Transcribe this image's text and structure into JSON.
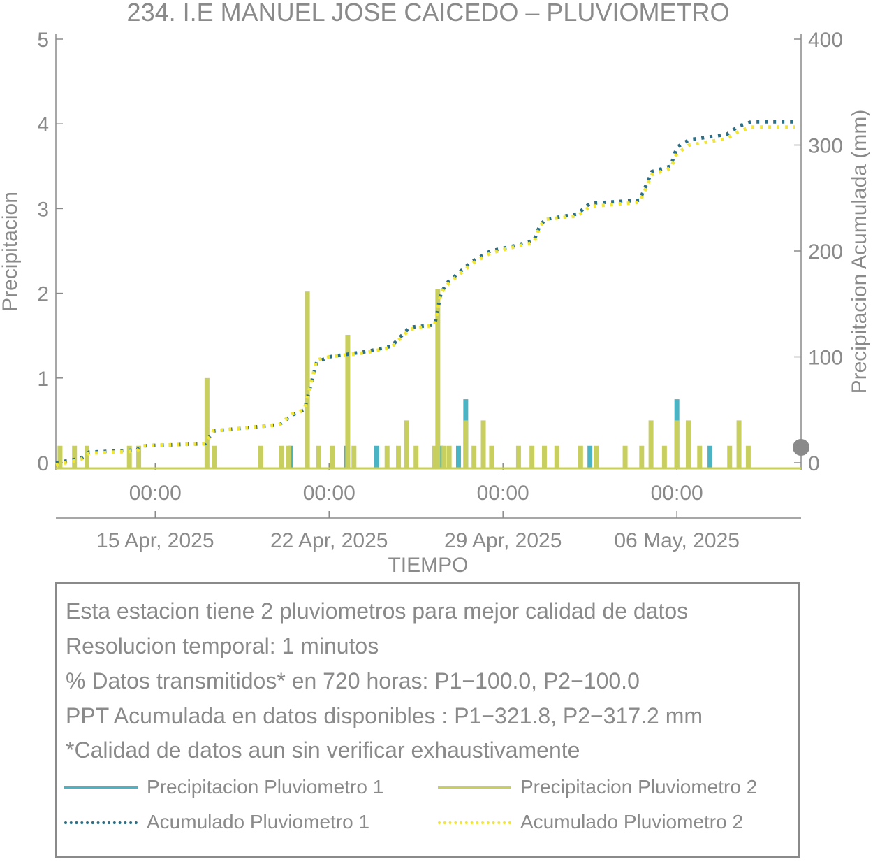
{
  "colors": {
    "p1": "#4bb4c4",
    "p2": "#c9cf5e",
    "acc1": "#2a6f86",
    "acc2": "#f2e634",
    "text": "#8a8a8a"
  },
  "chart_data": {
    "type": "bar+line",
    "title": "234. I.E MANUEL JOSE CAICEDO – PLUVIOMETRO",
    "xlabel": "TIEMPO",
    "ylabel_left": "Precipitacion",
    "ylabel_right": "Precipitacion Acumulada (mm)",
    "y_left_range": [
      0,
      5
    ],
    "y_left_ticks": [
      "0",
      "1",
      "2",
      "3",
      "4",
      "5"
    ],
    "y_right_range": [
      0,
      400
    ],
    "y_right_ticks": [
      "0",
      "100",
      "200",
      "300",
      "400"
    ],
    "x_range": [
      "2025-04-11T00:00",
      "2025-05-11T00:00"
    ],
    "x_time_ticks": [
      {
        "t": "2025-04-15T00:00",
        "label": "00:00"
      },
      {
        "t": "2025-04-22T00:00",
        "label": "00:00"
      },
      {
        "t": "2025-04-29T00:00",
        "label": "00:00"
      },
      {
        "t": "2025-05-06T00:00",
        "label": "00:00"
      }
    ],
    "x_date_ticks": [
      {
        "t": "2025-04-15T00:00",
        "label": "15 Apr, 2025"
      },
      {
        "t": "2025-04-22T00:00",
        "label": "22 Apr, 2025"
      },
      {
        "t": "2025-04-29T00:00",
        "label": "29 Apr, 2025"
      },
      {
        "t": "2025-05-06T00:00",
        "label": "06 May, 2025"
      }
    ],
    "grid": false,
    "legend_placement": "bottom",
    "series": [
      {
        "name": "Precipitacion Pluviometro 1",
        "kind": "bar",
        "axis": "left",
        "points": [
          [
            "2025-04-20T11:00",
            0.2
          ],
          [
            "2025-04-22T17:00",
            0.2
          ],
          [
            "2025-04-23T22:00",
            0.2
          ],
          [
            "2025-04-26T12:00",
            0.2
          ],
          [
            "2025-04-27T05:00",
            0.2
          ],
          [
            "2025-04-27T12:00",
            0.75
          ],
          [
            "2025-05-02T12:00",
            0.2
          ],
          [
            "2025-05-06T00:00",
            0.75
          ],
          [
            "2025-05-07T08:00",
            0.2
          ]
        ]
      },
      {
        "name": "Precipitacion Pluviometro 2",
        "kind": "bar",
        "axis": "left",
        "points": [
          [
            "2025-04-11T04:00",
            0.2
          ],
          [
            "2025-04-11T18:00",
            0.2
          ],
          [
            "2025-04-12T06:00",
            0.2
          ],
          [
            "2025-04-13T23:00",
            0.2
          ],
          [
            "2025-04-14T08:00",
            0.2
          ],
          [
            "2025-04-17T02:00",
            1.0
          ],
          [
            "2025-04-17T09:00",
            0.2
          ],
          [
            "2025-04-19T06:00",
            0.2
          ],
          [
            "2025-04-20T02:00",
            0.2
          ],
          [
            "2025-04-20T09:00",
            0.2
          ],
          [
            "2025-04-21T03:00",
            2.02
          ],
          [
            "2025-04-21T14:00",
            0.2
          ],
          [
            "2025-04-22T03:00",
            0.2
          ],
          [
            "2025-04-22T18:00",
            1.51
          ],
          [
            "2025-04-23T00:00",
            0.2
          ],
          [
            "2025-04-24T08:00",
            0.2
          ],
          [
            "2025-04-24T19:00",
            0.2
          ],
          [
            "2025-04-25T03:00",
            0.5
          ],
          [
            "2025-04-25T12:00",
            0.2
          ],
          [
            "2025-04-26T06:00",
            0.2
          ],
          [
            "2025-04-26T09:00",
            2.05
          ],
          [
            "2025-04-26T15:00",
            0.2
          ],
          [
            "2025-04-26T20:00",
            0.2
          ],
          [
            "2025-04-27T12:00",
            0.5
          ],
          [
            "2025-04-27T20:00",
            0.2
          ],
          [
            "2025-04-28T05:00",
            0.5
          ],
          [
            "2025-04-28T13:00",
            0.2
          ],
          [
            "2025-04-29T15:00",
            0.2
          ],
          [
            "2025-04-30T04:00",
            0.2
          ],
          [
            "2025-04-30T16:00",
            0.2
          ],
          [
            "2025-05-01T04:00",
            0.2
          ],
          [
            "2025-05-02T03:00",
            0.2
          ],
          [
            "2025-05-02T18:00",
            0.2
          ],
          [
            "2025-05-03T22:00",
            0.2
          ],
          [
            "2025-05-04T14:00",
            0.2
          ],
          [
            "2025-05-04T23:00",
            0.5
          ],
          [
            "2025-05-05T12:00",
            0.2
          ],
          [
            "2025-05-06T00:00",
            0.5
          ],
          [
            "2025-05-06T11:00",
            0.5
          ],
          [
            "2025-05-06T22:00",
            0.2
          ],
          [
            "2025-05-08T03:00",
            0.2
          ],
          [
            "2025-05-08T12:00",
            0.5
          ],
          [
            "2025-05-08T21:00",
            0.2
          ]
        ]
      },
      {
        "name": "Acumulado Pluviometro 1",
        "kind": "line",
        "style": "dotted",
        "axis": "right",
        "points": [
          [
            "2025-04-11T00:00",
            0
          ],
          [
            "2025-04-12T00:00",
            4
          ],
          [
            "2025-04-12T08:00",
            10
          ],
          [
            "2025-04-14T06:00",
            12
          ],
          [
            "2025-04-14T12:00",
            16
          ],
          [
            "2025-04-17T00:00",
            18
          ],
          [
            "2025-04-17T08:00",
            30
          ],
          [
            "2025-04-20T00:00",
            36
          ],
          [
            "2025-04-20T12:00",
            45
          ],
          [
            "2025-04-21T00:00",
            50
          ],
          [
            "2025-04-21T12:00",
            95
          ],
          [
            "2025-04-22T00:00",
            100
          ],
          [
            "2025-04-23T12:00",
            105
          ],
          [
            "2025-04-24T12:00",
            110
          ],
          [
            "2025-04-25T06:00",
            128
          ],
          [
            "2025-04-26T06:00",
            130
          ],
          [
            "2025-04-26T12:00",
            160
          ],
          [
            "2025-04-26T18:00",
            170
          ],
          [
            "2025-04-27T18:00",
            190
          ],
          [
            "2025-04-28T12:00",
            200
          ],
          [
            "2025-04-29T12:00",
            205
          ],
          [
            "2025-04-30T06:00",
            210
          ],
          [
            "2025-04-30T12:00",
            225
          ],
          [
            "2025-04-30T18:00",
            230
          ],
          [
            "2025-05-02T00:00",
            235
          ],
          [
            "2025-05-02T12:00",
            245
          ],
          [
            "2025-05-04T12:00",
            248
          ],
          [
            "2025-05-05T00:00",
            275
          ],
          [
            "2025-05-05T18:00",
            280
          ],
          [
            "2025-05-06T00:00",
            298
          ],
          [
            "2025-05-06T12:00",
            305
          ],
          [
            "2025-05-08T00:00",
            310
          ],
          [
            "2025-05-08T12:00",
            318
          ],
          [
            "2025-05-09T00:00",
            322
          ],
          [
            "2025-05-10T18:00",
            322
          ]
        ]
      },
      {
        "name": "Acumulado Pluviometro 2",
        "kind": "line",
        "style": "dotted",
        "axis": "right",
        "points": [
          [
            "2025-04-11T00:00",
            -2
          ],
          [
            "2025-04-12T00:00",
            3
          ],
          [
            "2025-04-12T08:00",
            9
          ],
          [
            "2025-04-14T06:00",
            11
          ],
          [
            "2025-04-14T12:00",
            16
          ],
          [
            "2025-04-17T00:00",
            18
          ],
          [
            "2025-04-17T08:00",
            30
          ],
          [
            "2025-04-20T00:00",
            36
          ],
          [
            "2025-04-20T12:00",
            46
          ],
          [
            "2025-04-21T00:00",
            50
          ],
          [
            "2025-04-21T12:00",
            97
          ],
          [
            "2025-04-22T00:00",
            100
          ],
          [
            "2025-04-23T12:00",
            104
          ],
          [
            "2025-04-24T12:00",
            109
          ],
          [
            "2025-04-25T06:00",
            126
          ],
          [
            "2025-04-26T06:00",
            130
          ],
          [
            "2025-04-26T12:00",
            160
          ],
          [
            "2025-04-26T18:00",
            168
          ],
          [
            "2025-04-27T18:00",
            188
          ],
          [
            "2025-04-28T12:00",
            198
          ],
          [
            "2025-04-29T12:00",
            204
          ],
          [
            "2025-04-30T06:00",
            208
          ],
          [
            "2025-04-30T12:00",
            224
          ],
          [
            "2025-04-30T18:00",
            230
          ],
          [
            "2025-05-02T00:00",
            233
          ],
          [
            "2025-05-02T12:00",
            242
          ],
          [
            "2025-05-04T12:00",
            246
          ],
          [
            "2025-05-05T00:00",
            272
          ],
          [
            "2025-05-05T18:00",
            278
          ],
          [
            "2025-05-06T00:00",
            292
          ],
          [
            "2025-05-06T12:00",
            300
          ],
          [
            "2025-05-08T00:00",
            306
          ],
          [
            "2025-05-08T12:00",
            313
          ],
          [
            "2025-05-09T00:00",
            317
          ],
          [
            "2025-05-10T18:00",
            317
          ]
        ]
      }
    ]
  },
  "info": {
    "lines": [
      "Esta estacion tiene 2 pluviometros para mejor calidad de datos",
      "Resolucion temporal: 1 minutos",
      "% Datos transmitidos* en 720 horas: P1−100.0, P2−100.0",
      "PPT Acumulada en datos disponibles : P1−321.8, P2−317.2 mm",
      "*Calidad de datos aun sin verificar exhaustivamente"
    ],
    "legend": [
      {
        "label": "Precipitacion Pluviometro 1",
        "style": "solid",
        "color_key": "p1"
      },
      {
        "label": "Precipitacion Pluviometro 2",
        "style": "solid",
        "color_key": "p2"
      },
      {
        "label": "Acumulado Pluviometro 1",
        "style": "dotted",
        "color_key": "acc1"
      },
      {
        "label": "Acumulado Pluviometro 2",
        "style": "dotted",
        "color_key": "acc2"
      }
    ]
  }
}
